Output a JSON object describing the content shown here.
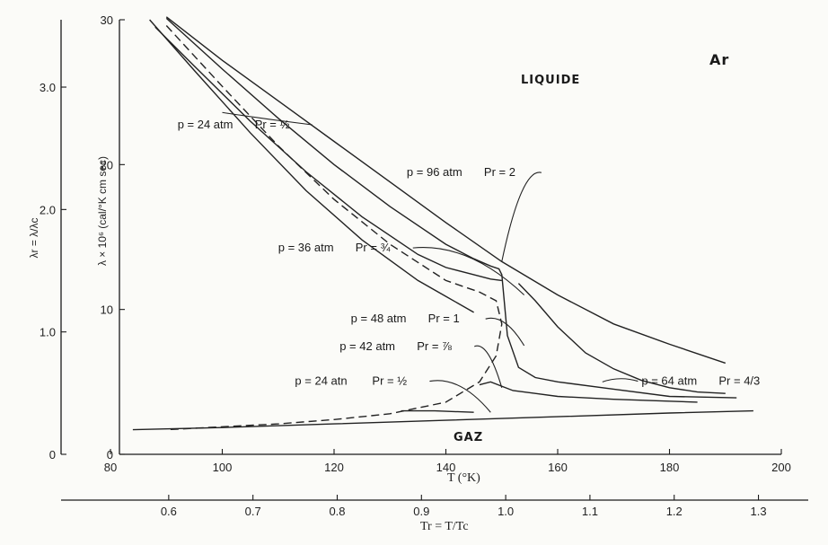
{
  "chart_data": {
    "type": "line",
    "title": "",
    "xlabel": "T (°K)",
    "ylabel": "λ × 10⁶ (cal/°K cm sec)",
    "xlim": [
      80,
      200
    ],
    "ylim": [
      0,
      30
    ],
    "x_ticks": [
      "80",
      "100",
      "120",
      "140",
      "160",
      "180",
      "200"
    ],
    "y_ticks": [
      "0",
      "10",
      "20",
      "30"
    ],
    "secondary_x_axis": {
      "label": "Tr = T/Tc",
      "ticks": [
        "0.6",
        "0.7",
        "0.8",
        "0.9",
        "1.0",
        "1.1",
        "1.2",
        "1.3"
      ]
    },
    "secondary_y_axis": {
      "label": "λr = λ/λc",
      "ticks": [
        "0",
        "1.0",
        "2.0",
        "3.0"
      ]
    },
    "region_labels": [
      "LIQUIDE",
      "GAZ"
    ],
    "species_label": "Ar",
    "series": [
      {
        "label": "p = 96 atm  Pr = 2",
        "x": [
          90,
          100,
          110,
          120,
          130,
          140,
          150,
          160,
          170,
          180,
          190
        ],
        "y": [
          30.2,
          27.2,
          24.4,
          21.6,
          18.8,
          16.0,
          13.3,
          11.0,
          9.0,
          7.6,
          6.3
        ]
      },
      {
        "label": "p = 64 atm  Pr = 4/3",
        "x": [
          153,
          156,
          160,
          165,
          170,
          175,
          180,
          185,
          190
        ],
        "y": [
          11.8,
          10.6,
          8.8,
          7.0,
          5.9,
          5.1,
          4.6,
          4.3,
          4.2
        ]
      },
      {
        "label": "p = 48 atm  Pr = 1",
        "x": [
          90,
          100,
          110,
          120,
          130,
          140,
          145,
          148,
          149.5,
          150,
          151,
          153,
          156,
          160,
          170,
          180,
          192
        ],
        "y": [
          30.1,
          26.6,
          23.2,
          20.0,
          17.1,
          14.5,
          13.5,
          13.0,
          12.8,
          12.4,
          8.2,
          6.0,
          5.3,
          5.0,
          4.5,
          4.0,
          3.9
        ]
      },
      {
        "label": "p = 42 atm  Pr = 7/8",
        "x": [
          146,
          148,
          152,
          156,
          160,
          170,
          185
        ],
        "y": [
          4.8,
          5.0,
          4.4,
          4.2,
          4.0,
          3.8,
          3.6
        ]
      },
      {
        "label": "p = 36 atm  Pr = 3/4",
        "x": [
          88,
          95,
          105,
          115,
          125,
          135,
          140,
          145,
          148,
          150
        ],
        "y": [
          29.5,
          26.8,
          23.0,
          19.5,
          16.4,
          13.8,
          12.9,
          12.4,
          12.1,
          12.0
        ]
      },
      {
        "label": "p = 24 atm  Pr = 1/2 (liquid)",
        "x": [
          87,
          95,
          105,
          115,
          125,
          135,
          140,
          145
        ],
        "y": [
          30.0,
          26.5,
          22.2,
          18.2,
          14.8,
          12.0,
          10.9,
          9.8
        ]
      },
      {
        "label": "p = 24 atm  Pr = 1/2 (gas)",
        "x": [
          132,
          138,
          145
        ],
        "y": [
          3.0,
          3.0,
          2.9
        ]
      },
      {
        "label": "Saturation (dashed)",
        "x": [
          90,
          100,
          110,
          120,
          130,
          140,
          146,
          149,
          150,
          149,
          146,
          140,
          130,
          120,
          110,
          100,
          90
        ],
        "y": [
          29.6,
          25.4,
          21.3,
          17.6,
          14.5,
          12.0,
          11.2,
          10.6,
          9.0,
          6.8,
          5.0,
          3.6,
          2.8,
          2.4,
          2.1,
          1.9,
          1.7
        ]
      },
      {
        "label": "GAZ (p ≈ 0)",
        "x": [
          84,
          100,
          120,
          140,
          160,
          180,
          195
        ],
        "y": [
          1.7,
          1.85,
          2.1,
          2.35,
          2.6,
          2.85,
          3.0
        ]
      }
    ],
    "annotations": [
      {
        "text": "p = 24 atm",
        "pr": "Pr = ½",
        "at": [
          92,
          22.5
        ]
      },
      {
        "text": "p = 96 atm",
        "pr": "Pr = 2",
        "at": [
          133,
          19.2
        ]
      },
      {
        "text": "p = 36 atm",
        "pr": "Pr = ¾",
        "at": [
          110,
          14.0
        ]
      },
      {
        "text": "p = 48 atm",
        "pr": "Pr = 1",
        "at": [
          123,
          9.1
        ]
      },
      {
        "text": "p = 42 atm",
        "pr": "Pr = ⅞",
        "at": [
          121,
          7.2
        ]
      },
      {
        "text": "p = 24 atn",
        "pr": "Pr = ½",
        "at": [
          113,
          4.8
        ]
      },
      {
        "text": "p = 64 atm",
        "pr": "Pr = 4/3",
        "at": [
          175,
          4.8
        ]
      }
    ],
    "grid": false,
    "legend": "none"
  }
}
